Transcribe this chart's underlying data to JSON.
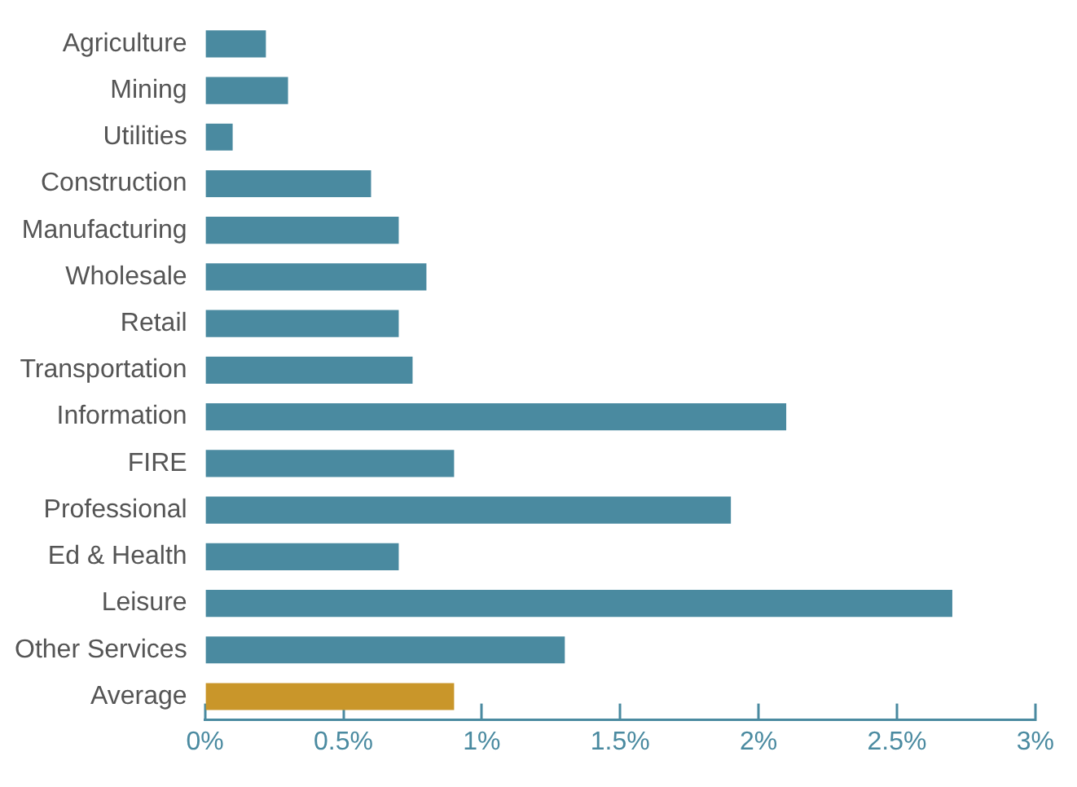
{
  "chart_data": {
    "type": "bar",
    "orientation": "horizontal",
    "categories": [
      "Agriculture",
      "Mining",
      "Utilities",
      "Construction",
      "Manufacturing",
      "Wholesale",
      "Retail",
      "Transportation",
      "Information",
      "FIRE",
      "Professional",
      "Ed & Health",
      "Leisure",
      "Other Services",
      "Average"
    ],
    "values": [
      0.22,
      0.3,
      0.1,
      0.6,
      0.7,
      0.8,
      0.7,
      0.75,
      2.1,
      0.9,
      1.9,
      0.7,
      2.7,
      1.3,
      0.9
    ],
    "colors": [
      "#4a8aa0",
      "#4a8aa0",
      "#4a8aa0",
      "#4a8aa0",
      "#4a8aa0",
      "#4a8aa0",
      "#4a8aa0",
      "#4a8aa0",
      "#4a8aa0",
      "#4a8aa0",
      "#4a8aa0",
      "#4a8aa0",
      "#4a8aa0",
      "#4a8aa0",
      "#c9962a"
    ],
    "xlim": [
      0,
      3
    ],
    "xticks": [
      {
        "value": 0,
        "label": "0%"
      },
      {
        "value": 0.5,
        "label": "0.5%"
      },
      {
        "value": 1,
        "label": "1%"
      },
      {
        "value": 1.5,
        "label": "1.5%"
      },
      {
        "value": 2,
        "label": "2%"
      },
      {
        "value": 2.5,
        "label": "2.5%"
      },
      {
        "value": 3,
        "label": "3%"
      }
    ],
    "grid": false,
    "legend": false
  }
}
